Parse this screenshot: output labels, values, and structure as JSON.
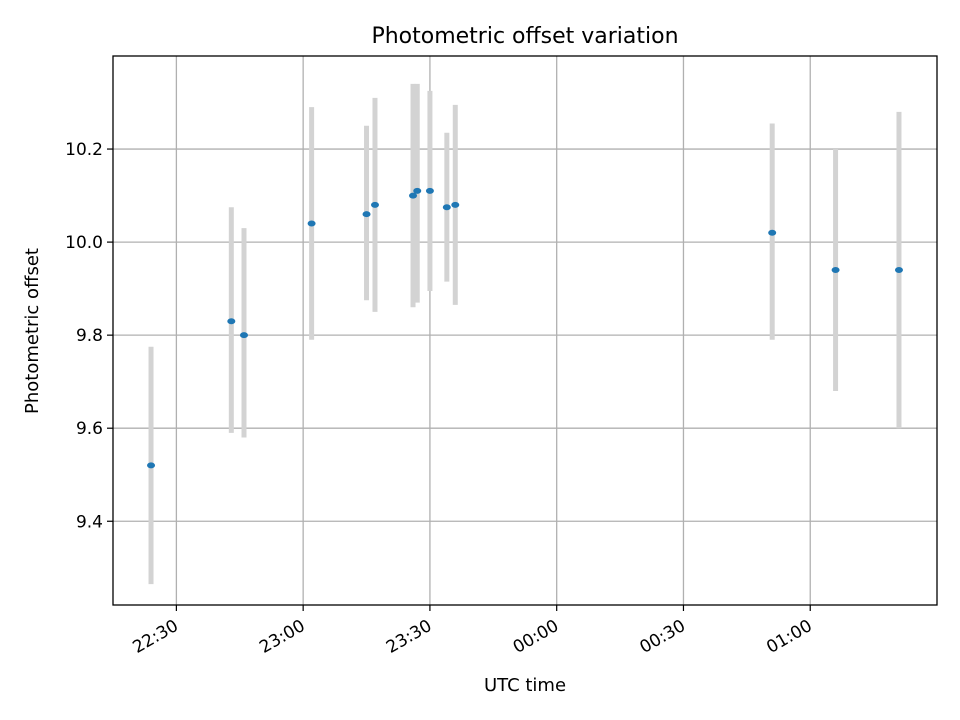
{
  "chart_data": {
    "type": "scatter",
    "title": "Photometric offset variation",
    "xlabel": "UTC time",
    "ylabel": "Photometric offset",
    "x_tick_labels": [
      "22:30",
      "23:00",
      "23:30",
      "00:00",
      "00:30",
      "01:00"
    ],
    "y_tick_labels": [
      "9.4",
      "9.6",
      "9.8",
      "10.0",
      "10.2"
    ],
    "y_ticks": [
      9.4,
      9.6,
      9.8,
      10.0,
      10.2
    ],
    "xlim": [
      "22:15",
      "01:30"
    ],
    "ylim": [
      9.22,
      10.4
    ],
    "grid": true,
    "errorbar_color": "#d3d3d3",
    "marker_color": "#1f77b4",
    "points": [
      {
        "time": "22:24",
        "y": 9.52,
        "yerr_low": 9.265,
        "yerr_high": 9.775
      },
      {
        "time": "22:43",
        "y": 9.83,
        "yerr_low": 9.59,
        "yerr_high": 10.075
      },
      {
        "time": "22:46",
        "y": 9.8,
        "yerr_low": 9.58,
        "yerr_high": 10.03
      },
      {
        "time": "23:02",
        "y": 10.04,
        "yerr_low": 9.79,
        "yerr_high": 10.29
      },
      {
        "time": "23:15",
        "y": 10.06,
        "yerr_low": 9.875,
        "yerr_high": 10.25
      },
      {
        "time": "23:17",
        "y": 10.08,
        "yerr_low": 9.85,
        "yerr_high": 10.31
      },
      {
        "time": "23:26",
        "y": 10.1,
        "yerr_low": 9.86,
        "yerr_high": 10.34
      },
      {
        "time": "23:27",
        "y": 10.11,
        "yerr_low": 9.87,
        "yerr_high": 10.34
      },
      {
        "time": "23:30",
        "y": 10.11,
        "yerr_low": 9.895,
        "yerr_high": 10.325
      },
      {
        "time": "23:34",
        "y": 10.075,
        "yerr_low": 9.915,
        "yerr_high": 10.235
      },
      {
        "time": "23:36",
        "y": 10.08,
        "yerr_low": 9.865,
        "yerr_high": 10.295
      },
      {
        "time": "00:51",
        "y": 10.02,
        "yerr_low": 9.79,
        "yerr_high": 10.255
      },
      {
        "time": "01:06",
        "y": 9.94,
        "yerr_low": 9.68,
        "yerr_high": 10.2
      },
      {
        "time": "01:21",
        "y": 9.94,
        "yerr_low": 9.6,
        "yerr_high": 10.28
      }
    ]
  }
}
